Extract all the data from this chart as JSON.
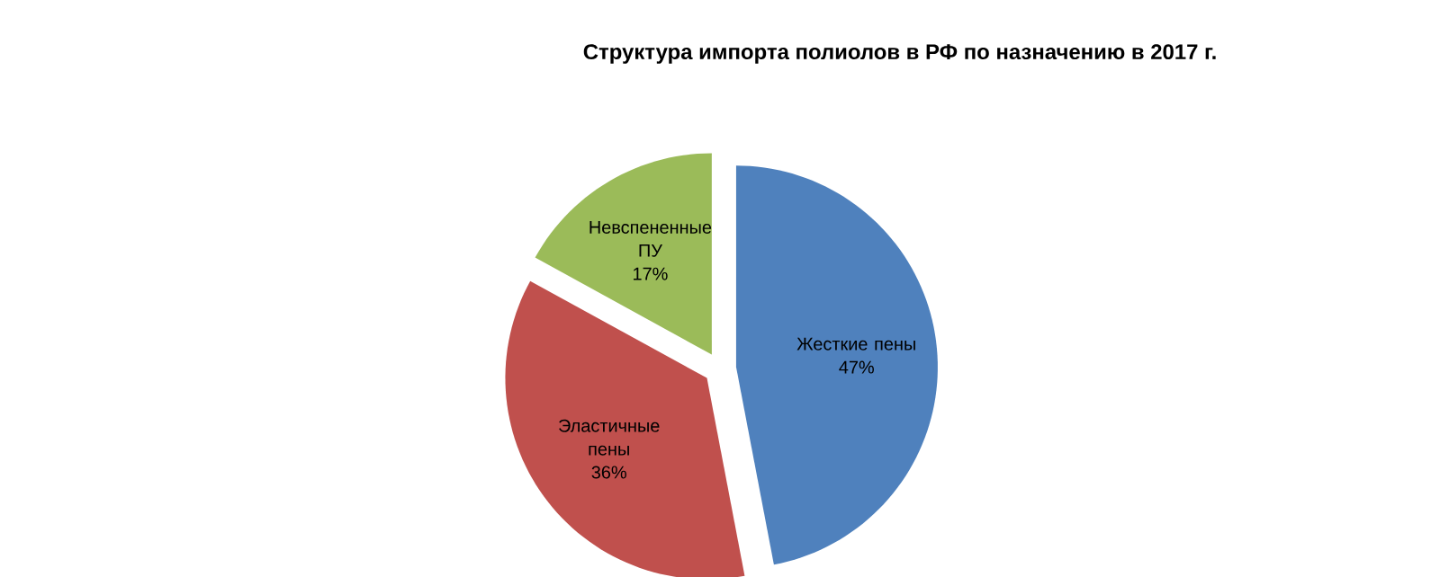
{
  "chart_data": {
    "type": "pie",
    "title": "Структура импорта полиолов в РФ по назначению в 2017 г.",
    "categories": [
      "Жесткие пены",
      "Эластичные пены",
      "Невспененные ПУ"
    ],
    "values": [
      47,
      36,
      17
    ],
    "value_labels": [
      "47%",
      "36%",
      "17%"
    ],
    "data_labels": true,
    "colors": [
      "#4f81bd",
      "#c0504d",
      "#9bbb59"
    ],
    "legend": false
  }
}
